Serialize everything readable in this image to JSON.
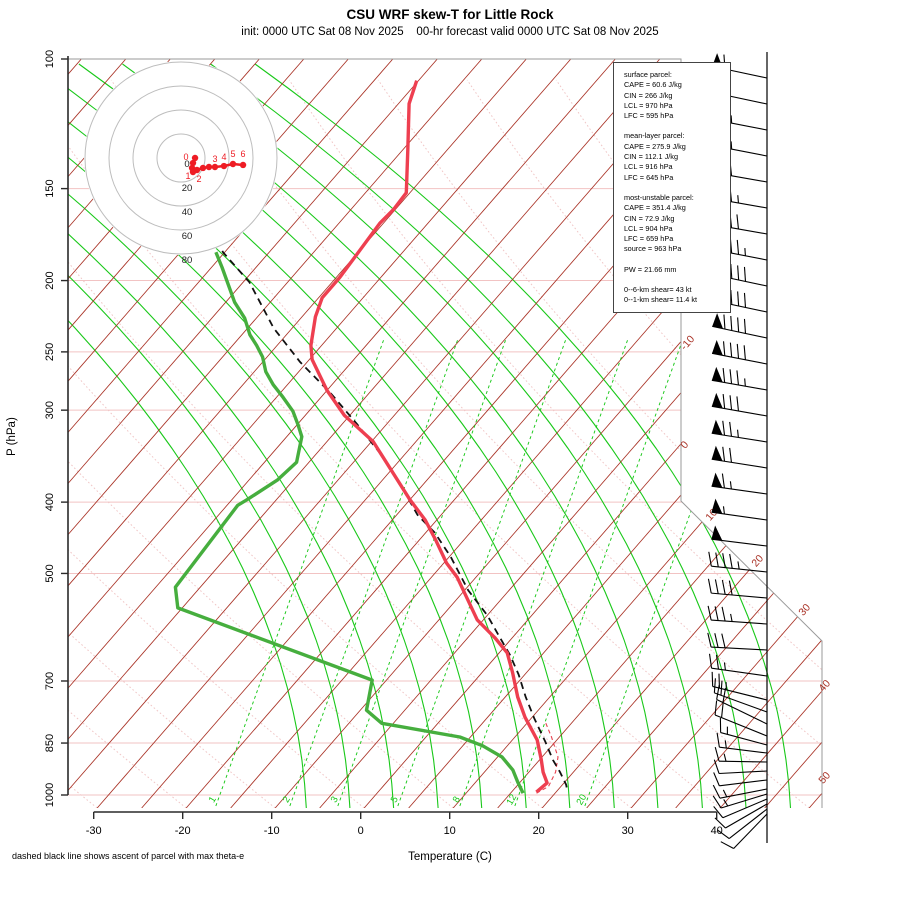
{
  "header": {
    "title": "CSU WRF skew-T for Little Rock",
    "subtitle": "init: 0000 UTC Sat 08 Nov 2025    00-hr forecast valid 0000 UTC Sat 08 Nov 2025"
  },
  "footer": {
    "note": "dashed black line shows ascent of parcel with max theta-e",
    "xlabel": "Temperature (C)",
    "ylabel": "P (hPa)"
  },
  "info_box": {
    "sections": [
      {
        "title": "surface parcel:",
        "lines": [
          "CAPE = 60.6 J/kg",
          "CIN = 266 J/kg",
          "LCL = 970 hPa",
          "LFC = 595 hPa"
        ]
      },
      {
        "title": "mean-layer parcel:",
        "lines": [
          "CAPE = 275.9 J/kg",
          "CIN = 112.1 J/kg",
          "LCL = 916 hPa",
          "LFC = 645 hPa"
        ]
      },
      {
        "title": "most-unstable parcel:",
        "lines": [
          "CAPE = 351.4 J/kg",
          "CIN = 72.9 J/kg",
          "LCL = 904 hPa",
          "LFC = 659 hPa",
          "source = 963 hPa"
        ]
      }
    ],
    "pw": "PW =  21.66 mm",
    "shear": [
      "0--6-km shear= 43 kt",
      "0--1-km shear= 11.4 kt"
    ]
  },
  "chart_data": {
    "type": "line",
    "subtype": "skewT-logP sounding",
    "xlabel": "Temperature (C)",
    "ylabel": "P (hPa)",
    "pressure_ticks": [
      100,
      150,
      200,
      250,
      300,
      400,
      500,
      700,
      850,
      1000
    ],
    "temp_ticks": [
      -30,
      -20,
      -10,
      0,
      10,
      20,
      30,
      40
    ],
    "isotherm_step_c": 5,
    "isotherm_labels": [
      {
        "t": -10,
        "x": 690,
        "y": 345
      },
      {
        "t": 0,
        "x": 687,
        "y": 447
      },
      {
        "t": 10,
        "x": 714,
        "y": 517
      },
      {
        "t": 20,
        "x": 760,
        "y": 563
      },
      {
        "t": 30,
        "x": 807,
        "y": 612
      },
      {
        "t": 40,
        "x": 827,
        "y": 688
      },
      {
        "t": 50,
        "x": 827,
        "y": 780
      }
    ],
    "mixing_ratio_g_kg": {
      "values": [
        1,
        2,
        3,
        5,
        8,
        12,
        20
      ],
      "x_at_y800": [
        218,
        292,
        340,
        400,
        462,
        517,
        587
      ]
    },
    "dry_adiabat_anchors_c": [
      -30,
      -20,
      -10,
      0,
      10,
      20,
      30,
      40,
      50,
      60,
      70,
      80,
      90,
      100,
      110,
      120,
      130,
      140,
      150,
      160,
      170,
      180,
      190,
      200,
      210,
      220
    ],
    "moist_adiabat_anchors_c": [
      -6.5,
      -1.6,
      3.3,
      8.3,
      13.2,
      18.2,
      23.1,
      28.1,
      33.0,
      38.0,
      42.9,
      47.9
    ],
    "series": [
      {
        "name": "temperature",
        "units": [
          "hPa",
          "C"
        ],
        "points": [
          [
            107,
            -65.2
          ],
          [
            115,
            -63.8
          ],
          [
            133,
            -59.4
          ],
          [
            152,
            -55.4
          ],
          [
            160,
            -55.2
          ],
          [
            167,
            -55.4
          ],
          [
            182,
            -55.0
          ],
          [
            198,
            -54.6
          ],
          [
            211,
            -54.6
          ],
          [
            224,
            -53.5
          ],
          [
            245,
            -51.2
          ],
          [
            256,
            -49.7
          ],
          [
            282,
            -45.0
          ],
          [
            305,
            -40.6
          ],
          [
            331,
            -34.8
          ],
          [
            397,
            -25.0
          ],
          [
            423,
            -21.3
          ],
          [
            450,
            -18.2
          ],
          [
            484,
            -14.7
          ],
          [
            506,
            -12.1
          ],
          [
            578,
            -5.7
          ],
          [
            612,
            -1.9
          ],
          [
            641,
            0.9
          ],
          [
            683,
            3.5
          ],
          [
            736,
            6.4
          ],
          [
            784,
            9.2
          ],
          [
            842,
            12.8
          ],
          [
            896,
            15.2
          ],
          [
            931,
            16.6
          ],
          [
            963,
            18.1
          ],
          [
            991,
            17.8
          ]
        ]
      },
      {
        "name": "dewpoint",
        "units": [
          "hPa",
          "C"
        ],
        "points": [
          [
            183,
            -71.0
          ],
          [
            192,
            -68.8
          ],
          [
            214,
            -64.0
          ],
          [
            225,
            -61.3
          ],
          [
            237,
            -59.1
          ],
          [
            245,
            -57.3
          ],
          [
            254,
            -55.5
          ],
          [
            266,
            -53.7
          ],
          [
            277,
            -51.6
          ],
          [
            288,
            -49.3
          ],
          [
            301,
            -46.8
          ],
          [
            314,
            -44.9
          ],
          [
            326,
            -43.3
          ],
          [
            353,
            -41.4
          ],
          [
            373,
            -41.8
          ],
          [
            397,
            -43.3
          ],
          [
            404,
            -43.8
          ],
          [
            522,
            -42.8
          ],
          [
            557,
            -40.5
          ],
          [
            698,
            -11.6
          ],
          [
            767,
            -9.3
          ],
          [
            799,
            -6.3
          ],
          [
            834,
            3.8
          ],
          [
            857,
            7.2
          ],
          [
            888,
            10.5
          ],
          [
            925,
            13.0
          ],
          [
            960,
            14.7
          ],
          [
            994,
            16.4
          ]
        ]
      },
      {
        "name": "max-theta-e-parcel",
        "units": [
          "hPa",
          "C"
        ],
        "points": [
          [
            110,
            -97.7
          ],
          [
            141,
            -83.1
          ],
          [
            183,
            -70.2
          ],
          [
            201,
            -64.3
          ],
          [
            232,
            -57.1
          ],
          [
            258,
            -50.8
          ],
          [
            285,
            -44.2
          ],
          [
            313,
            -38.4
          ],
          [
            345,
            -32.6
          ],
          [
            382,
            -27.1
          ],
          [
            416,
            -22.7
          ],
          [
            440,
            -19.0
          ],
          [
            475,
            -14.8
          ],
          [
            527,
            -9.6
          ],
          [
            570,
            -5.0
          ],
          [
            610,
            -1.5
          ],
          [
            645,
            1.4
          ],
          [
            686,
            4.3
          ],
          [
            736,
            7.3
          ],
          [
            786,
            10.3
          ],
          [
            847,
            13.9
          ],
          [
            896,
            16.5
          ],
          [
            931,
            18.5
          ],
          [
            968,
            20.4
          ],
          [
            991,
            21.3
          ]
        ]
      },
      {
        "name": "surface-parcel",
        "units": [
          "hPa",
          "C"
        ],
        "points": [
          [
            994,
            17.9
          ],
          [
            974,
            18.6
          ],
          [
            931,
            18.0
          ],
          [
            888,
            16.8
          ],
          [
            834,
            14.1
          ],
          [
            795,
            11.9
          ]
        ]
      }
    ],
    "hodograph": {
      "ring_labels_kt": [
        0,
        20,
        40,
        60,
        80
      ],
      "ring_radii_kt": [
        20,
        40,
        60,
        80
      ],
      "trace_kt": [
        {
          "u": 11.7,
          "v": 0.0,
          "label": "0"
        },
        {
          "u": 10.0,
          "v": -4.2,
          "label": ""
        },
        {
          "u": 9.2,
          "v": -8.3,
          "label": "1"
        },
        {
          "u": 10.0,
          "v": -11.7,
          "label": "2"
        },
        {
          "u": 13.3,
          "v": -10.0,
          "label": ""
        },
        {
          "u": 18.3,
          "v": -8.3,
          "label": ""
        },
        {
          "u": 23.3,
          "v": -7.5,
          "label": ""
        },
        {
          "u": 28.3,
          "v": -7.5,
          "label": "3"
        },
        {
          "u": 35.8,
          "v": -6.7,
          "label": "4"
        },
        {
          "u": 43.3,
          "v": -5.0,
          "label": "5"
        },
        {
          "u": 51.7,
          "v": -5.8,
          "label": "6"
        }
      ]
    },
    "wind_barbs": [
      [
        78,
        12,
        60
      ],
      [
        104,
        12,
        60
      ],
      [
        130,
        11,
        65
      ],
      [
        156,
        11,
        65
      ],
      [
        182,
        10,
        70
      ],
      [
        208,
        10,
        75
      ],
      [
        234,
        10,
        80
      ],
      [
        260,
        11,
        85
      ],
      [
        286,
        12,
        90
      ],
      [
        312,
        12,
        90
      ],
      [
        338,
        12,
        90
      ],
      [
        364,
        11,
        90
      ],
      [
        390,
        10,
        85
      ],
      [
        416,
        10,
        80
      ],
      [
        442,
        9,
        75
      ],
      [
        468,
        9,
        70
      ],
      [
        494,
        8,
        65
      ],
      [
        520,
        8,
        55
      ],
      [
        546,
        7,
        50
      ],
      [
        572,
        6,
        45
      ],
      [
        598,
        5,
        40
      ],
      [
        624,
        4,
        35
      ],
      [
        650,
        3,
        30
      ],
      [
        676,
        8,
        25
      ],
      [
        700,
        14,
        25
      ],
      [
        712,
        20,
        20
      ],
      [
        724,
        26,
        20
      ],
      [
        736,
        22,
        20
      ],
      [
        745,
        15,
        15
      ],
      [
        753,
        7,
        15
      ],
      [
        762,
        1,
        15
      ],
      [
        771,
        -3,
        10
      ],
      [
        780,
        -7,
        10
      ],
      [
        789,
        -11,
        15
      ],
      [
        794,
        -17,
        15
      ],
      [
        799,
        -23,
        10
      ],
      [
        804,
        -30,
        10
      ],
      [
        809,
        -38,
        10
      ],
      [
        814,
        -46,
        10
      ]
    ],
    "colors": {
      "temperature": "#ee3f50",
      "dewpoint": "#46ae3e",
      "parcel": "#111111",
      "surface_parcel": "#e8404e",
      "isotherm": "#a93226",
      "isotherm_label": "#a93226",
      "dry_adiabat": "#f0c6c6",
      "pressure_line": "#f2c3c3",
      "moist_adiabat": "#19c819",
      "mixing_ratio": "#19c819",
      "boundary": "#9a9a9a",
      "axis": "#2a2a2a",
      "hodo_ring": "#bdbdbd",
      "hodo_trace": "#ee1c24",
      "barb": "#000000"
    },
    "layout": {
      "grid": true,
      "legend": "none",
      "p_range_hPa": [
        100,
        1000
      ],
      "t_axis_range_c": [
        -30,
        40
      ]
    }
  }
}
